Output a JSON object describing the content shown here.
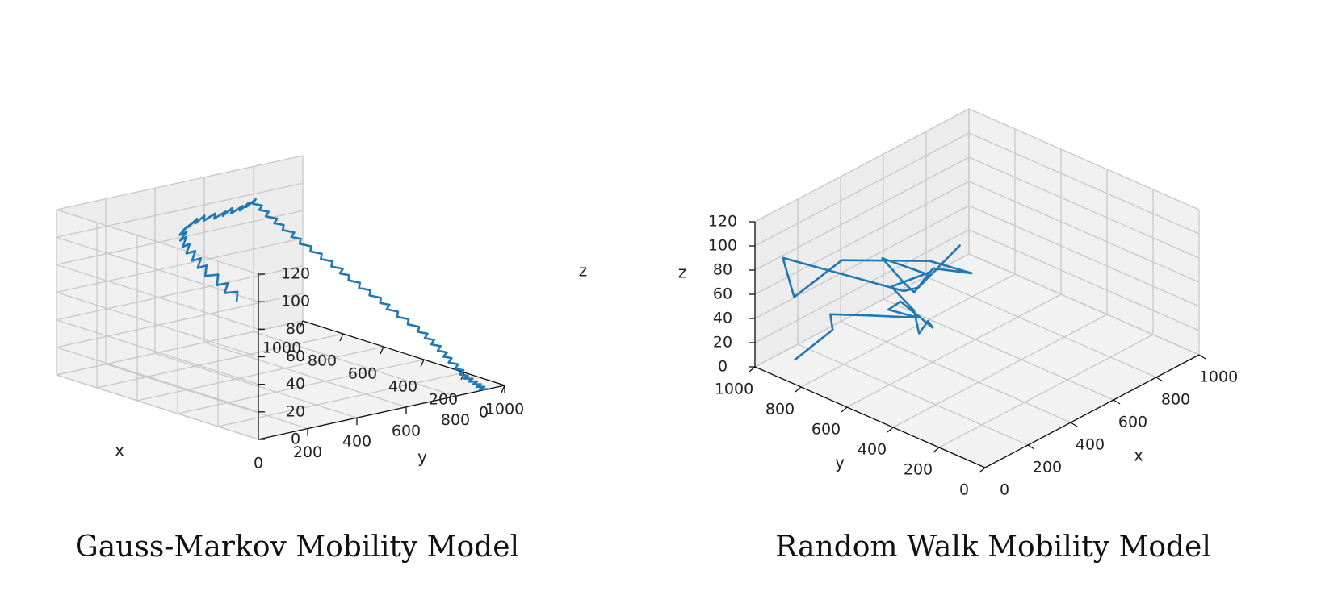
{
  "colors": {
    "line": "#1f77b4"
  },
  "chart_data": [
    {
      "type": "line",
      "title": "Gauss-Markov Mobility Model",
      "xlabel": "x",
      "ylabel": "y",
      "zlabel": "z",
      "xlim": [
        0,
        1000
      ],
      "ylim": [
        0,
        1000
      ],
      "zlim": [
        0,
        120
      ],
      "x_ticks": [
        0,
        200,
        400,
        600,
        800,
        1000
      ],
      "y_ticks": [
        200,
        400,
        600,
        800,
        1000
      ],
      "y_origin_label": "0",
      "z_ticks": [
        0,
        20,
        40,
        60,
        80,
        100,
        120
      ],
      "grid": true,
      "series": [
        {
          "x": [
            620,
            640,
            680,
            700,
            730,
            760,
            800,
            830,
            850,
            870,
            890,
            910,
            930,
            950,
            960,
            980,
            985,
            990,
            1000,
            1000,
            995,
            985,
            980,
            975,
            960,
            950,
            930,
            910,
            890,
            870,
            860,
            850,
            830,
            810,
            800,
            790,
            780,
            770,
            760,
            750,
            740,
            730,
            720,
            700,
            690,
            680,
            660,
            640,
            630,
            620,
            600,
            580,
            560,
            540,
            520,
            500,
            480,
            460,
            450,
            440,
            420,
            400,
            380,
            360,
            340,
            320,
            300,
            290,
            280,
            260,
            240,
            220,
            200,
            180,
            160,
            150,
            140,
            130,
            120,
            110,
            100,
            90,
            85,
            80,
            70,
            60,
            50,
            45,
            40,
            35,
            30,
            25,
            20,
            15,
            10,
            8,
            5,
            3,
            2,
            0
          ],
          "y": [
            420,
            440,
            420,
            450,
            430,
            460,
            440,
            470,
            450,
            480,
            460,
            490,
            470,
            500,
            480,
            510,
            490,
            520,
            500,
            530,
            510,
            540,
            520,
            550,
            530,
            560,
            540,
            570,
            550,
            580,
            560,
            590,
            570,
            600,
            580,
            610,
            590,
            620,
            600,
            630,
            610,
            640,
            620,
            650,
            630,
            660,
            640,
            670,
            650,
            680,
            660,
            690,
            670,
            700,
            680,
            710,
            690,
            720,
            700,
            730,
            710,
            740,
            720,
            750,
            730,
            760,
            740,
            770,
            750,
            780,
            760,
            790,
            770,
            800,
            780,
            810,
            790,
            820,
            800,
            830,
            810,
            840,
            820,
            850,
            830,
            860,
            840,
            870,
            850,
            880,
            860,
            890,
            870,
            900,
            880,
            910,
            890,
            920,
            900,
            930
          ],
          "z": [
            55,
            60,
            58,
            63,
            61,
            66,
            64,
            69,
            67,
            72,
            70,
            75,
            73,
            78,
            76,
            81,
            79,
            84,
            82,
            87,
            85,
            90,
            88,
            93,
            91,
            96,
            94,
            99,
            97,
            102,
            100,
            105,
            103,
            108,
            106,
            111,
            109,
            114,
            112,
            110,
            108,
            106,
            104,
            102,
            100,
            98,
            96,
            94,
            92,
            90,
            88,
            86,
            84,
            82,
            80,
            78,
            76,
            74,
            72,
            70,
            68,
            66,
            64,
            62,
            60,
            58,
            56,
            54,
            52,
            50,
            48,
            46,
            44,
            42,
            40,
            38,
            36,
            34,
            32,
            30,
            28,
            26,
            24,
            22,
            20,
            18,
            16,
            14,
            12,
            10,
            9,
            8,
            7,
            6,
            5,
            4,
            3,
            2,
            1,
            0
          ]
        }
      ]
    },
    {
      "type": "line",
      "title": "Random Walk Mobility Model",
      "xlabel": "x",
      "ylabel": "y",
      "zlabel": "z",
      "xlim": [
        0,
        1000
      ],
      "ylim": [
        0,
        1000
      ],
      "zlim": [
        0,
        120
      ],
      "x_ticks": [
        200,
        400,
        600,
        800,
        1000
      ],
      "x_origin_label": "0",
      "y_ticks": [
        0,
        200,
        400,
        600,
        800,
        1000
      ],
      "z_ticks": [
        0,
        20,
        40,
        60,
        80,
        100,
        120
      ],
      "grid": true,
      "series": [
        {
          "x": [
            90,
            180,
            180,
            120,
            320,
            150,
            110,
            110,
            120,
            100,
            130,
            250,
            420,
            260,
            300,
            380,
            550,
            650,
            690,
            590,
            320,
            140,
            130,
            320,
            280,
            430
          ],
          "y": [
            910,
            830,
            840,
            620,
            590,
            560,
            470,
            330,
            360,
            380,
            430,
            640,
            630,
            550,
            630,
            800,
            760,
            830,
            700,
            790,
            920,
            960,
            1000,
            650,
            550,
            510
          ],
          "z": [
            5,
            28,
            40,
            63,
            45,
            70,
            88,
            78,
            80,
            70,
            82,
            73,
            70,
            75,
            72,
            71,
            45,
            35,
            38,
            50,
            65,
            48,
            78,
            62,
            77,
            101
          ]
        }
      ]
    }
  ]
}
